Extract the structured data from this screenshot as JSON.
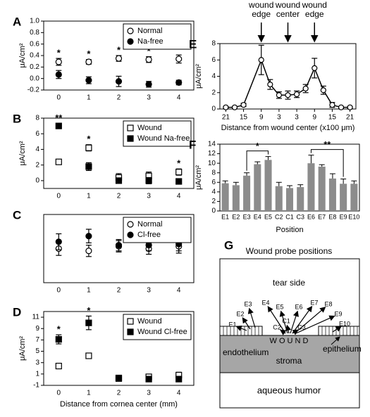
{
  "chart_data": [
    {
      "panel": "A",
      "type": "errorbar",
      "ylabel": "μA/cm²",
      "categories": [
        "0",
        "1",
        "2",
        "3",
        "4"
      ],
      "ylim": [
        -0.2,
        1.0
      ],
      "yticks": [
        -0.2,
        {
          "value": 0,
          "label": "0.0"
        },
        0.2,
        0.4,
        0.6,
        0.8,
        {
          "value": 1,
          "label": "1.0"
        }
      ],
      "legend": "upper right",
      "series": [
        {
          "name": "Normal",
          "color": "#000000",
          "marker": "circle",
          "filled": false,
          "values": [
            0.29,
            0.29,
            0.35,
            0.33,
            0.34
          ],
          "errors": [
            0.06,
            0.04,
            0.05,
            0.05,
            0.07
          ]
        },
        {
          "name": "Na-free",
          "color": "#000000",
          "marker": "circle",
          "filled": true,
          "values": [
            0.07,
            -0.03,
            -0.05,
            -0.1,
            -0.07
          ],
          "errors": [
            0.07,
            0.06,
            0.09,
            0.05,
            0.04
          ]
        }
      ],
      "significance": [
        "*",
        "*",
        "*",
        "*",
        "*"
      ]
    },
    {
      "panel": "B",
      "type": "errorbar",
      "ylabel": "μA/cm²",
      "categories": [
        "0",
        "1",
        "2",
        "3",
        "4"
      ],
      "ylim": [
        -1,
        8
      ],
      "yticks": [
        0,
        2,
        4,
        6,
        8
      ],
      "legend": "upper right",
      "series": [
        {
          "name": "Wound",
          "color": "#000000",
          "marker": "square",
          "filled": false,
          "values": [
            2.4,
            4.2,
            0.4,
            0.6,
            1.1
          ],
          "errors": [
            0.3,
            0.4,
            0.5,
            0.5,
            0.4
          ]
        },
        {
          "name": "Wound Na-free",
          "color": "#000000",
          "marker": "square",
          "filled": true,
          "values": [
            7.0,
            1.8,
            0.0,
            0.0,
            -0.1
          ],
          "errors": [
            0.3,
            0.5,
            0.3,
            0.4,
            0.2
          ]
        }
      ],
      "significance": [
        "**",
        "*",
        null,
        null,
        "*"
      ]
    },
    {
      "panel": "C",
      "type": "errorbar",
      "categories": [
        "0",
        "1",
        "2",
        "3",
        "4"
      ],
      "ylim": [
        0,
        0.6
      ],
      "legend": "upper right",
      "series": [
        {
          "name": "Normal",
          "color": "#000000",
          "marker": "circle",
          "filled": false,
          "values": [
            0.3,
            0.28,
            0.32,
            0.3,
            0.32
          ],
          "errors": [
            0.06,
            0.05,
            0.05,
            0.05,
            0.06
          ]
        },
        {
          "name": "Cl-free",
          "color": "#000000",
          "marker": "circle",
          "filled": true,
          "values": [
            0.36,
            0.41,
            0.33,
            0.33,
            0.34
          ],
          "errors": [
            0.07,
            0.06,
            0.05,
            0.05,
            0.06
          ]
        }
      ]
    },
    {
      "panel": "D",
      "type": "errorbar",
      "ylabel": "μA/cm²",
      "xlabel": "Distance from cornea center (mm)",
      "categories": [
        "0",
        "1",
        "2",
        "3",
        "4"
      ],
      "ylim": [
        -1,
        12
      ],
      "yticks": [
        -1,
        1,
        3,
        5,
        7,
        9,
        11
      ],
      "legend": "upper right",
      "series": [
        {
          "name": "Wound",
          "color": "#000000",
          "marker": "square",
          "filled": false,
          "values": [
            2.4,
            4.2,
            0.3,
            0.5,
            0.8
          ],
          "errors": [
            0.4,
            0.4,
            0.3,
            0.4,
            0.5
          ]
        },
        {
          "name": "Wound Cl-free",
          "color": "#000000",
          "marker": "square",
          "filled": true,
          "values": [
            7.1,
            10.0,
            0.2,
            0.1,
            0.1
          ],
          "errors": [
            0.8,
            1.2,
            0.3,
            0.3,
            0.3
          ]
        }
      ],
      "significance": [
        "*",
        "*",
        null,
        null,
        null
      ]
    },
    {
      "panel": "E",
      "type": "line",
      "ylabel": "μA/cm²",
      "xlabel": "Distance from wound center (x100 μm)",
      "color": "#000000",
      "x": [
        -21,
        -18,
        -15,
        -9,
        -6,
        -3,
        0,
        3,
        6,
        9,
        12,
        15,
        18,
        21
      ],
      "values": [
        0.2,
        0.2,
        0.5,
        6.0,
        3.0,
        1.7,
        1.7,
        1.8,
        2.5,
        5.0,
        2.3,
        0.5,
        0.2,
        0.2
      ],
      "errors": [
        0.1,
        0.1,
        0.2,
        1.8,
        0.6,
        0.4,
        0.5,
        0.4,
        0.5,
        1.2,
        0.5,
        0.3,
        0.1,
        0.1
      ],
      "xlim": [
        -23,
        23
      ],
      "xticks": [
        {
          "value": -21,
          "label": "21"
        },
        {
          "value": -15,
          "label": "15"
        },
        {
          "value": -9,
          "label": "9"
        },
        {
          "value": -3,
          "label": "3"
        },
        3,
        9,
        15,
        21
      ],
      "ylim": [
        0,
        8
      ],
      "yticks": [
        0,
        2,
        4,
        6,
        8
      ],
      "markers": [
        {
          "x": -9,
          "label": [
            "wound",
            "edge"
          ]
        },
        {
          "x": 0,
          "label": [
            "wound",
            "center"
          ]
        },
        {
          "x": 9,
          "label": [
            "wound",
            "edge"
          ]
        }
      ]
    },
    {
      "panel": "F",
      "type": "bar",
      "ylabel": "μA/cm²",
      "xlabel": "Position",
      "color": "#8c8c8c",
      "categories": [
        "E1",
        "E2",
        "E3",
        "E4",
        "E5",
        "C2",
        "C1",
        "C3",
        "E6",
        "E7",
        "E8",
        "E9",
        "E10"
      ],
      "values": [
        5.8,
        5.4,
        7.4,
        9.8,
        10.7,
        5.2,
        4.8,
        5.0,
        10.0,
        9.3,
        6.8,
        5.7,
        5.7
      ],
      "errors": [
        0.5,
        0.6,
        0.6,
        0.5,
        0.7,
        0.8,
        0.5,
        0.5,
        1.7,
        0.4,
        1.0,
        1.0,
        0.6
      ],
      "ylim": [
        0,
        14
      ],
      "yticks": [
        0,
        2,
        4,
        6,
        8,
        10,
        12,
        14
      ],
      "brackets": [
        {
          "from": 2,
          "to": 4,
          "label": "*"
        },
        {
          "from": 8,
          "to": 11,
          "label": "**"
        }
      ]
    }
  ],
  "diagram": {
    "panel": "G",
    "title": "Wound probe positions",
    "regions": {
      "tear": "tear side",
      "wound": "W O U N D",
      "epithelium": "epithelium",
      "endothelium": "endothelium",
      "stroma": "stroma",
      "aqueous": "aqueous humor"
    },
    "probes": [
      "E1",
      "E2",
      "E3",
      "E4",
      "E5",
      "E6",
      "E7",
      "E8",
      "E9",
      "E10",
      "C1",
      "C2",
      "C3"
    ]
  }
}
